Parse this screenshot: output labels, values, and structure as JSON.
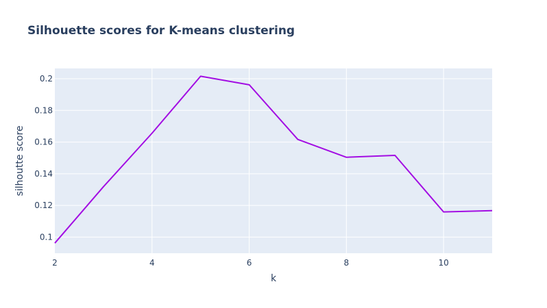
{
  "chart_data": {
    "type": "line",
    "title": "Silhouette scores for K-means clustering",
    "xlabel": "k",
    "ylabel": "silhoutte score",
    "x": [
      2,
      3,
      4,
      5,
      6,
      7,
      8,
      9,
      10,
      11
    ],
    "series": [
      {
        "values": [
          0.0962,
          0.1318,
          0.1656,
          0.2016,
          0.1962,
          0.1617,
          0.1504,
          0.1516,
          0.1159,
          0.1167
        ]
      }
    ],
    "xlim": [
      2,
      11
    ],
    "ylim": [
      0.0898,
      0.2065
    ],
    "xticks": [
      2,
      4,
      6,
      8,
      10
    ],
    "xtick_labels": [
      "2",
      "4",
      "6",
      "8",
      "10"
    ],
    "yticks": [
      0.1,
      0.12,
      0.14,
      0.16,
      0.18,
      0.2
    ],
    "ytick_labels": [
      "0.1",
      "0.12",
      "0.14",
      "0.16",
      "0.18",
      "0.2"
    ],
    "grid": true,
    "colors": {
      "line": "#a30de3",
      "plot_bg": "#e5ecf6",
      "grid": "#ffffff",
      "text": "#2a3f5f"
    }
  }
}
